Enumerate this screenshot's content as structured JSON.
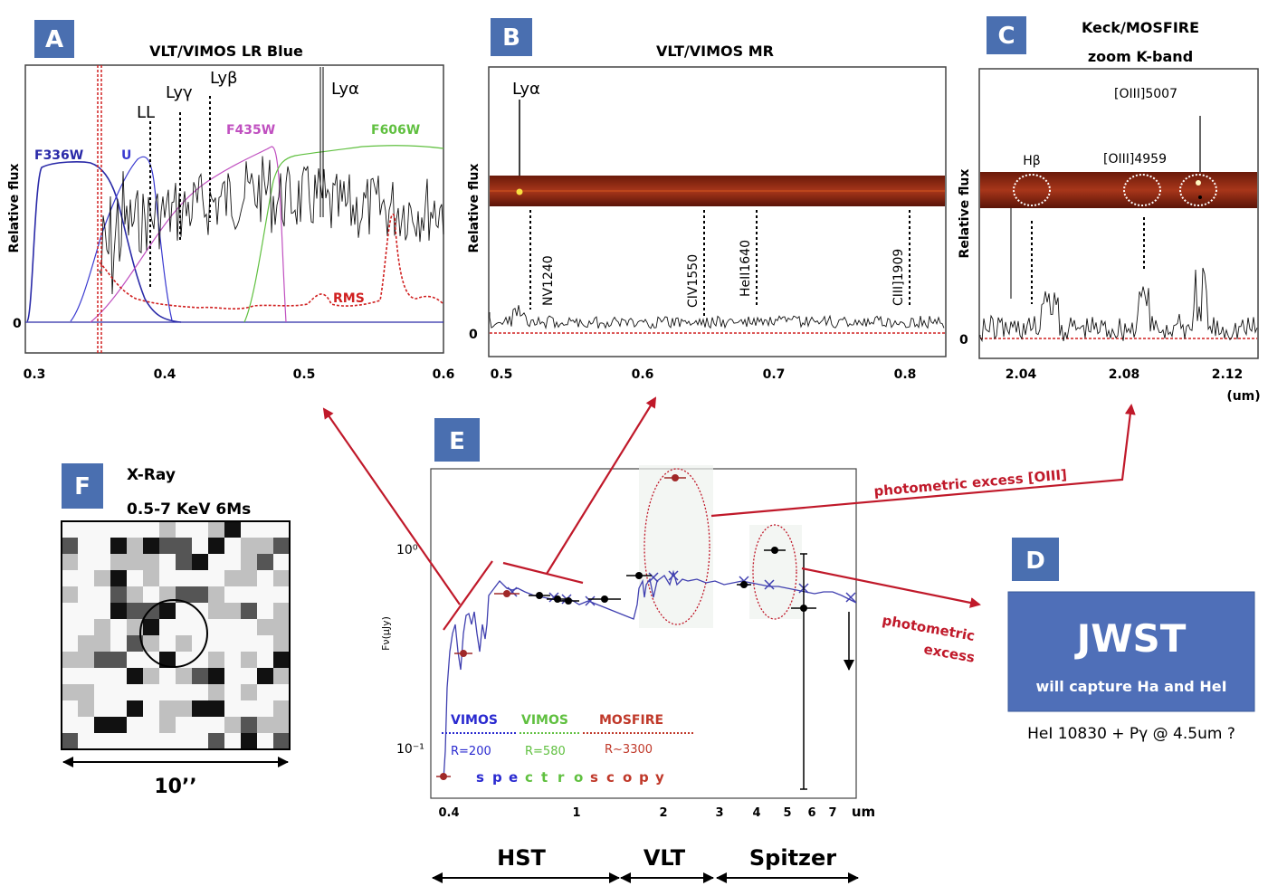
{
  "panels": {
    "A": {
      "badge": "A",
      "title": "VLT/VIMOS LR Blue",
      "ylabel": "Relative flux",
      "zero": "0",
      "xticks": [
        "0.3",
        "0.4",
        "0.5",
        "0.6"
      ],
      "lines": {
        "ll": "LL",
        "lyg": "Lyγ",
        "lyb": "Lyβ",
        "lya": "Lyα"
      },
      "filters": {
        "f336w": "F336W",
        "u": "U",
        "f435w": "F435W",
        "f606w": "F606W",
        "rms": "RMS"
      },
      "colors": {
        "f336w": "#2a2aa8",
        "u": "#3a3ad0",
        "f435w": "#c050c0",
        "f606w": "#60c040",
        "rms": "#d02020"
      }
    },
    "B": {
      "badge": "B",
      "title": "VLT/VIMOS MR",
      "ylabel": "Relative flux",
      "zero": "0",
      "xticks": [
        "0.5",
        "0.6",
        "0.7",
        "0.8"
      ],
      "lines": {
        "lya": "Lyα",
        "nv": "NV1240",
        "civ": "CIV1550",
        "heii": "HeII1640",
        "ciii": "CIII]1909"
      }
    },
    "C": {
      "badge": "C",
      "title_line1": "Keck/MOSFIRE",
      "title_line2": "zoom K-band",
      "ylabel": "Relative flux",
      "zero": "0",
      "xticks": [
        "2.04",
        "2.08",
        "2.12"
      ],
      "unit": "(um)",
      "lines": {
        "hb": "Hβ",
        "oiii4959": "[OIII]4959",
        "oiii5007": "[OIII]5007"
      }
    },
    "D": {
      "badge": "D",
      "box_title": "JWST",
      "box_sub": "will capture Ha and HeI",
      "note": "HeI 10830 + Pγ @ 4.5um ?"
    },
    "E": {
      "badge": "E",
      "ylabel": "Fν(μJy)",
      "yticks": [
        "10⁰",
        "10⁻¹"
      ],
      "xticks": [
        "0.4",
        "1",
        "2",
        "3",
        "4",
        "5",
        "6",
        "7",
        "um"
      ],
      "legend": {
        "vimos1": "VIMOS",
        "vimos1_r": "R=200",
        "vimos2": "VIMOS",
        "vimos2_r": "R=580",
        "mosfire": "MOSFIRE",
        "mosfire_r": "R~3300",
        "spectroscopy": [
          "s",
          "p",
          "e",
          "c",
          "t",
          "r",
          "o",
          "s",
          "c",
          "o",
          "p",
          "y"
        ]
      },
      "telescopes": {
        "hst": "HST",
        "vlt": "VLT",
        "spitzer": "Spitzer"
      }
    },
    "F": {
      "badge": "F",
      "title_line1": "X-Ray",
      "title_line2": "0.5-7 KeV 6Ms",
      "scale": "10’’"
    }
  },
  "annotations": {
    "excess_oiii": "photometric excess [OIII]",
    "excess_line1": "photometric",
    "excess_line2": "excess"
  },
  "colors": {
    "badge": "#4a6fb0",
    "arrow": "#c0192a",
    "jwst_box": "#4f6fb8",
    "model": "#4040b0"
  }
}
